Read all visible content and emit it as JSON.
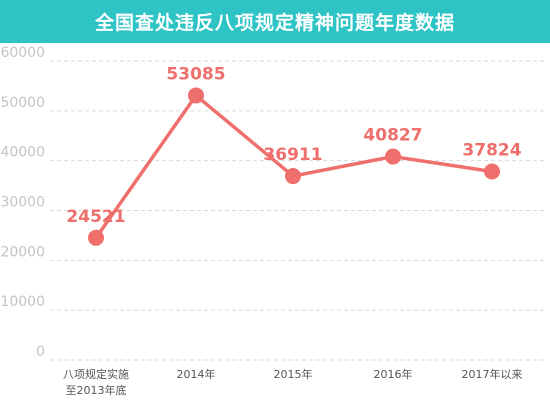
{
  "chart_data": {
    "type": "line",
    "title": "全国查处违反八项规定精神问题年度数据",
    "categories": [
      "八项规定实施\n至2013年底",
      "2014年",
      "2015年",
      "2016年",
      "2017年以来"
    ],
    "series": [
      {
        "values": [
          24521,
          53085,
          36911,
          40827,
          37824
        ]
      }
    ],
    "ylim": [
      0,
      60000
    ],
    "yticks": [
      0,
      10000,
      20000,
      30000,
      40000,
      50000,
      60000
    ],
    "grid": true,
    "colors": {
      "header": "#2ec4c6",
      "line": "#ee6f6b",
      "grid": "#d9d9d9"
    }
  }
}
